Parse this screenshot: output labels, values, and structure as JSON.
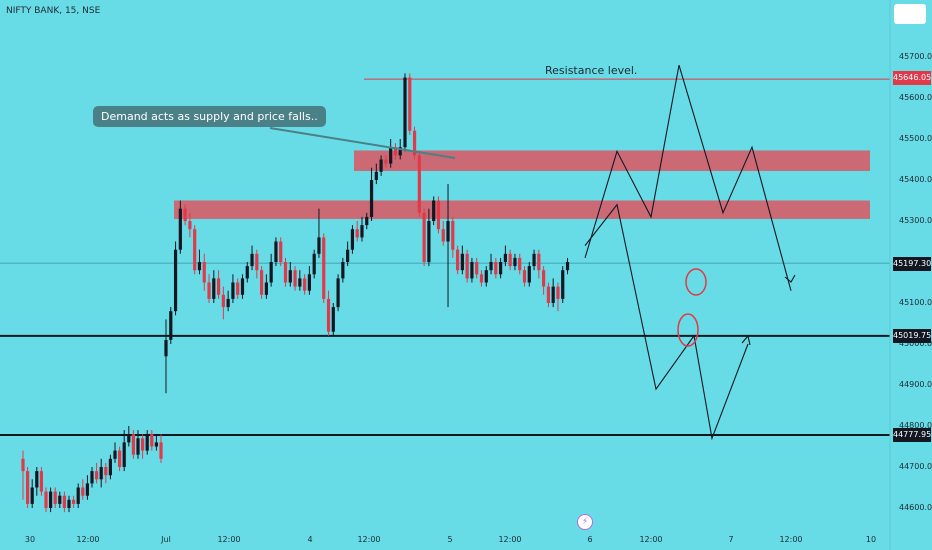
{
  "header": {
    "symbol_label": "NIFTY BANK, 15, NSE"
  },
  "annotations": {
    "callout": "Demand acts as supply and price falls..",
    "resistance": "Resistance level."
  },
  "price_axis": {
    "ticks": [
      "45700.00",
      "45600.00",
      "45500.00",
      "45400.00",
      "45300.00",
      "45100.00",
      "45000.00",
      "44900.00",
      "44800.00",
      "44700.00",
      "44600.00"
    ]
  },
  "time_axis": {
    "ticks": [
      "30",
      "12:00",
      "Jul",
      "12:00",
      "4",
      "12:00",
      "5",
      "12:00",
      "6",
      "12:00",
      "7",
      "12:00",
      "10"
    ]
  },
  "price_labels": [
    "45646.05",
    "45197.30",
    "45019.75",
    "44777.95"
  ],
  "colors": {
    "background": "#68dce6",
    "up": "#131722",
    "down": "#e2394a",
    "zone": "#e0505a"
  },
  "chart_data": {
    "type": "candlestick",
    "title": "NIFTY BANK, 15, NSE",
    "y_range": [
      44540,
      45790
    ],
    "levels": [
      {
        "price": 45646.05,
        "color": "#e2394a",
        "label": "Resistance level."
      },
      {
        "price": 45197.3,
        "color": "#3b8ea3",
        "style": "thin"
      },
      {
        "price": 45019.75,
        "color": "#131722"
      },
      {
        "price": 44777.95,
        "color": "#131722"
      }
    ],
    "zones": [
      {
        "top": 45472,
        "bottom": 45422
      },
      {
        "top": 45350,
        "bottom": 45305
      }
    ],
    "projection_up": [
      45210,
      45470,
      45310,
      45680,
      45320,
      45480,
      45130
    ],
    "projection_down": [
      45240,
      45340,
      44890,
      45020,
      44770,
      45000
    ],
    "candles": [
      [
        44720,
        44690,
        44740,
        44620
      ],
      [
        44690,
        44610,
        44700,
        44600
      ],
      [
        44610,
        44650,
        44670,
        44600
      ],
      [
        44650,
        44690,
        44700,
        44630
      ],
      [
        44690,
        44640,
        44700,
        44630
      ],
      [
        44640,
        44600,
        44650,
        44590
      ],
      [
        44600,
        44640,
        44650,
        44590
      ],
      [
        44640,
        44610,
        44650,
        44600
      ],
      [
        44610,
        44630,
        44640,
        44600
      ],
      [
        44630,
        44600,
        44640,
        44590
      ],
      [
        44600,
        44620,
        44630,
        44590
      ],
      [
        44620,
        44610,
        44630,
        44600
      ],
      [
        44610,
        44650,
        44660,
        44600
      ],
      [
        44650,
        44630,
        44670,
        44620
      ],
      [
        44630,
        44660,
        44680,
        44620
      ],
      [
        44660,
        44690,
        44700,
        44650
      ],
      [
        44690,
        44670,
        44710,
        44660
      ],
      [
        44670,
        44700,
        44720,
        44650
      ],
      [
        44700,
        44680,
        44710,
        44660
      ],
      [
        44680,
        44720,
        44730,
        44670
      ],
      [
        44720,
        44740,
        44760,
        44710
      ],
      [
        44740,
        44700,
        44750,
        44690
      ],
      [
        44700,
        44760,
        44790,
        44690
      ],
      [
        44760,
        44780,
        44800,
        44750
      ],
      [
        44780,
        44730,
        44790,
        44720
      ],
      [
        44730,
        44770,
        44790,
        44720
      ],
      [
        44770,
        44740,
        44780,
        44720
      ],
      [
        44740,
        44780,
        44790,
        44730
      ],
      [
        44780,
        44750,
        44790,
        44740
      ],
      [
        44750,
        44760,
        44780,
        44740
      ],
      [
        44760,
        44720,
        44780,
        44710
      ],
      [
        44970,
        45010,
        45060,
        44880
      ],
      [
        45010,
        45080,
        45090,
        45000
      ],
      [
        45080,
        45230,
        45250,
        45070
      ],
      [
        45230,
        45330,
        45350,
        45220
      ],
      [
        45330,
        45300,
        45340,
        45290
      ],
      [
        45300,
        45280,
        45320,
        45260
      ],
      [
        45280,
        45180,
        45290,
        45170
      ],
      [
        45180,
        45200,
        45230,
        45170
      ],
      [
        45200,
        45150,
        45220,
        45130
      ],
      [
        45150,
        45110,
        45170,
        45100
      ],
      [
        45110,
        45160,
        45180,
        45100
      ],
      [
        45160,
        45120,
        45180,
        45110
      ],
      [
        45120,
        45090,
        45140,
        45060
      ],
      [
        45090,
        45110,
        45130,
        45080
      ],
      [
        45110,
        45150,
        45170,
        45100
      ],
      [
        45150,
        45120,
        45160,
        45110
      ],
      [
        45120,
        45160,
        45170,
        45110
      ],
      [
        45160,
        45190,
        45200,
        45150
      ],
      [
        45190,
        45220,
        45240,
        45180
      ],
      [
        45220,
        45180,
        45230,
        45160
      ],
      [
        45180,
        45120,
        45190,
        45110
      ],
      [
        45120,
        45150,
        45170,
        45110
      ],
      [
        45150,
        45200,
        45220,
        45140
      ],
      [
        45200,
        45250,
        45260,
        45190
      ],
      [
        45250,
        45200,
        45260,
        45190
      ],
      [
        45200,
        45150,
        45210,
        45140
      ],
      [
        45150,
        45180,
        45200,
        45140
      ],
      [
        45180,
        45140,
        45190,
        45130
      ],
      [
        45140,
        45160,
        45180,
        45130
      ],
      [
        45160,
        45130,
        45170,
        45120
      ],
      [
        45130,
        45170,
        45190,
        45120
      ],
      [
        45170,
        45220,
        45230,
        45160
      ],
      [
        45220,
        45260,
        45330,
        45210
      ],
      [
        45260,
        45110,
        45270,
        45100
      ],
      [
        45110,
        45030,
        45130,
        45020
      ],
      [
        45030,
        45090,
        45100,
        45020
      ],
      [
        45090,
        45160,
        45170,
        45080
      ],
      [
        45160,
        45200,
        45210,
        45150
      ],
      [
        45200,
        45230,
        45250,
        45190
      ],
      [
        45230,
        45280,
        45290,
        45220
      ],
      [
        45280,
        45260,
        45300,
        45250
      ],
      [
        45260,
        45290,
        45310,
        45250
      ],
      [
        45290,
        45310,
        45320,
        45280
      ],
      [
        45310,
        45400,
        45430,
        45300
      ],
      [
        45400,
        45420,
        45440,
        45390
      ],
      [
        45420,
        45450,
        45460,
        45410
      ],
      [
        45450,
        45440,
        45460,
        45430
      ],
      [
        45440,
        45480,
        45500,
        45430
      ],
      [
        45480,
        45460,
        45490,
        45450
      ],
      [
        45460,
        45480,
        45500,
        45450
      ],
      [
        45480,
        45650,
        45660,
        45470
      ],
      [
        45650,
        45520,
        45660,
        45510
      ],
      [
        45520,
        45460,
        45530,
        45450
      ],
      [
        45460,
        45320,
        45470,
        45310
      ],
      [
        45320,
        45200,
        45330,
        45190
      ],
      [
        45200,
        45300,
        45330,
        45190
      ],
      [
        45300,
        45350,
        45360,
        45290
      ],
      [
        45350,
        45280,
        45360,
        45270
      ],
      [
        45280,
        45250,
        45300,
        45240
      ],
      [
        45250,
        45300,
        45390,
        45090
      ],
      [
        45300,
        45230,
        45310,
        45210
      ],
      [
        45230,
        45180,
        45240,
        45170
      ],
      [
        45180,
        45220,
        45240,
        45170
      ],
      [
        45220,
        45160,
        45230,
        45150
      ],
      [
        45160,
        45200,
        45210,
        45150
      ],
      [
        45200,
        45170,
        45210,
        45160
      ],
      [
        45170,
        45150,
        45180,
        45140
      ],
      [
        45150,
        45180,
        45190,
        45140
      ],
      [
        45180,
        45200,
        45220,
        45170
      ],
      [
        45200,
        45170,
        45210,
        45160
      ],
      [
        45170,
        45200,
        45210,
        45160
      ],
      [
        45200,
        45220,
        45240,
        45190
      ],
      [
        45220,
        45190,
        45230,
        45180
      ],
      [
        45190,
        45210,
        45220,
        45180
      ],
      [
        45210,
        45180,
        45220,
        45170
      ],
      [
        45180,
        45150,
        45190,
        45140
      ],
      [
        45150,
        45190,
        45200,
        45140
      ],
      [
        45190,
        45220,
        45230,
        45180
      ],
      [
        45220,
        45180,
        45230,
        45160
      ],
      [
        45180,
        45140,
        45190,
        45120
      ],
      [
        45140,
        45100,
        45150,
        45090
      ],
      [
        45100,
        45140,
        45160,
        45090
      ],
      [
        45140,
        45110,
        45150,
        45080
      ],
      [
        45110,
        45180,
        45190,
        45100
      ],
      [
        45180,
        45200,
        45210,
        45170
      ]
    ]
  }
}
